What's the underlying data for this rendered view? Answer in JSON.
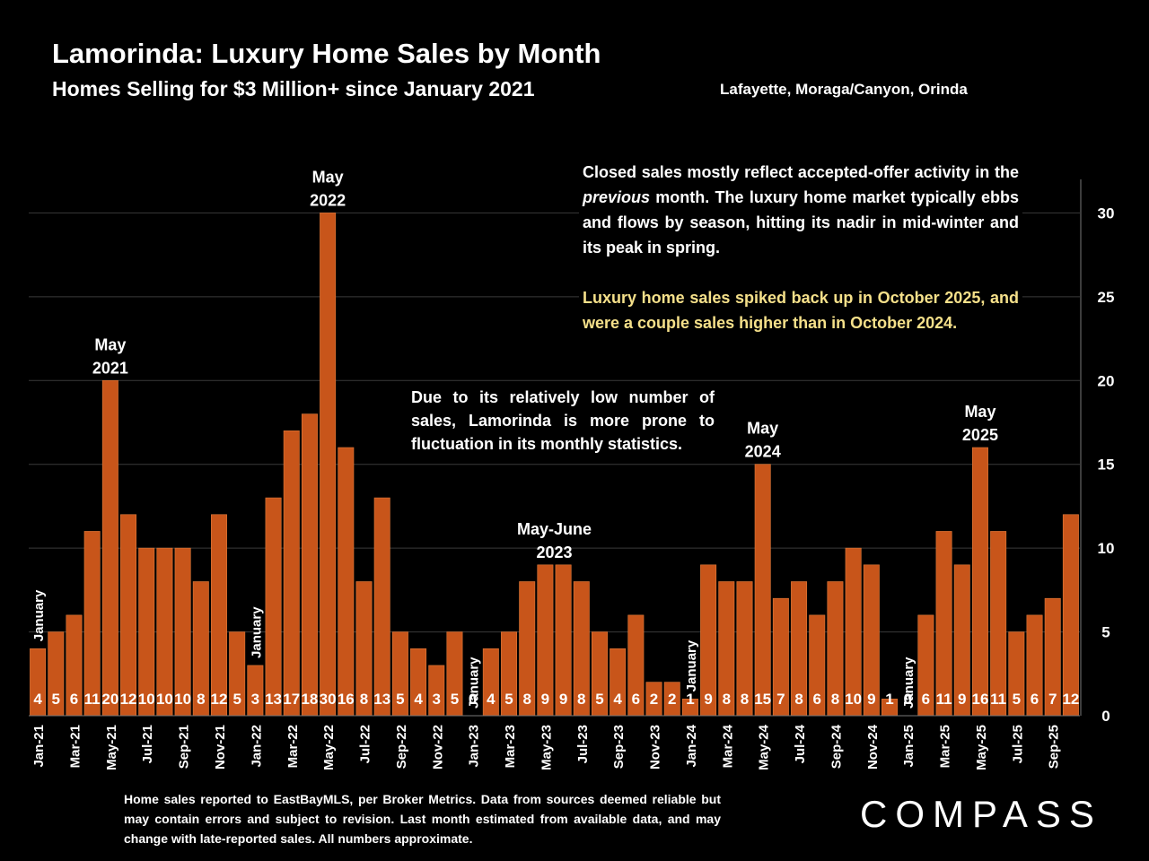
{
  "header": {
    "title": "Lamorinda:  Luxury Home Sales by Month",
    "subtitle": "Homes Selling for $3 Million+ since January 2021",
    "region": "Lafayette, Moraga/Canyon, Orinda"
  },
  "notes": {
    "market": "Closed sales mostly reflect accepted-offer activity in the previous month. The luxury home market typically ebbs and flows by season, hitting its nadir in mid-winter and its peak in spring.",
    "market_italic_word": "previous",
    "spike": "Luxury home sales spiked back up in October 2025, and were a couple sales higher than in October 2024.",
    "fluctuation": "Due to its relatively low number of sales, Lamorinda is more prone to fluctuation in its monthly statistics."
  },
  "footer": {
    "disclaimer": "Home sales reported to EastBayMLS, per Broker Metrics. Data from sources deemed reliable but may contain errors and subject to revision.  Last month estimated from available data, and may change with late-reported sales. All numbers approximate."
  },
  "logo": {
    "text": "COMPASS"
  },
  "colors": {
    "bar": "#c8551a",
    "background": "#000000",
    "highlight_text": "#f5e08a"
  },
  "chart_data": {
    "type": "bar",
    "categories": [
      "Jan-21",
      "Feb-21",
      "Mar-21",
      "Apr-21",
      "May-21",
      "Jun-21",
      "Jul-21",
      "Aug-21",
      "Sep-21",
      "Oct-21",
      "Nov-21",
      "Dec-21",
      "Jan-22",
      "Feb-22",
      "Mar-22",
      "Apr-22",
      "May-22",
      "Jun-22",
      "Jul-22",
      "Aug-22",
      "Sep-22",
      "Oct-22",
      "Nov-22",
      "Dec-22",
      "Jan-23",
      "Feb-23",
      "Mar-23",
      "Apr-23",
      "May-23",
      "Jun-23",
      "Jul-23",
      "Aug-23",
      "Sep-23",
      "Oct-23",
      "Nov-23",
      "Dec-23",
      "Jan-24",
      "Feb-24",
      "Mar-24",
      "Apr-24",
      "May-24",
      "Jun-24",
      "Jul-24",
      "Aug-24",
      "Sep-24",
      "Oct-24",
      "Nov-24",
      "Dec-24",
      "Jan-25",
      "Feb-25",
      "Mar-25",
      "Apr-25",
      "May-25",
      "Jun-25",
      "Jul-25",
      "Aug-25",
      "Sep-25",
      "Oct-25"
    ],
    "x_tick_labels": [
      "Jan-21",
      "Mar-21",
      "May-21",
      "Jul-21",
      "Sep-21",
      "Nov-21",
      "Jan-22",
      "Mar-22",
      "May-22",
      "Jul-22",
      "Sep-22",
      "Nov-22",
      "Jan-23",
      "Mar-23",
      "May-23",
      "Jul-23",
      "Sep-23",
      "Nov-23",
      "Jan-24",
      "Mar-24",
      "May-24",
      "Jul-24",
      "Sep-24",
      "Nov-24",
      "Jan-25",
      "Mar-25",
      "May-25",
      "Jul-25",
      "Sep-25"
    ],
    "values": [
      4,
      5,
      6,
      11,
      20,
      12,
      10,
      10,
      10,
      8,
      12,
      5,
      3,
      13,
      17,
      18,
      30,
      16,
      8,
      13,
      5,
      4,
      3,
      5,
      0,
      4,
      5,
      8,
      9,
      9,
      8,
      5,
      4,
      6,
      2,
      2,
      1,
      9,
      8,
      8,
      15,
      7,
      8,
      6,
      8,
      10,
      9,
      1,
      0,
      6,
      11,
      9,
      16,
      11,
      5,
      6,
      7,
      12
    ],
    "ylim": [
      0,
      32
    ],
    "y_ticks": [
      0,
      5,
      10,
      15,
      20,
      25,
      30
    ],
    "y_axis_side": "right",
    "grid": true,
    "annotations": [
      {
        "category": "May-21",
        "lines": [
          "May",
          "2021"
        ]
      },
      {
        "category": "May-22",
        "lines": [
          "May",
          "2022"
        ]
      },
      {
        "category": "May-23",
        "lines": [
          "May-June",
          "2023"
        ]
      },
      {
        "category": "May-24",
        "lines": [
          "May",
          "2024"
        ]
      },
      {
        "category": "May-25",
        "lines": [
          "May",
          "2025"
        ]
      }
    ],
    "january_labels": [
      {
        "category": "Jan-21",
        "text": "January"
      },
      {
        "category": "Jan-22",
        "text": "January"
      },
      {
        "category": "Jan-23",
        "text": "January"
      },
      {
        "category": "Jan-24",
        "text": "January"
      },
      {
        "category": "Jan-25",
        "text": "January"
      }
    ]
  }
}
